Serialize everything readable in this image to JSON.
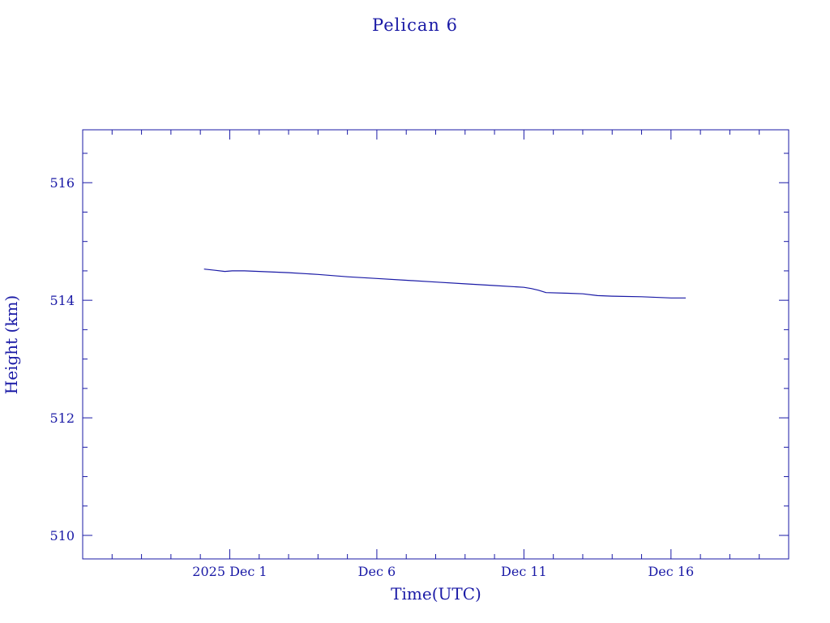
{
  "chart_data": {
    "type": "line",
    "title": "Pelican 6",
    "xlabel": "Time(UTC)",
    "ylabel": "Height (km)",
    "x_unit": "date",
    "xlim": [
      "2025-11-26",
      "2025-12-20"
    ],
    "ylim": [
      509.6,
      516.9
    ],
    "x_ticks": [
      {
        "x": "2025-12-01",
        "label": "2025 Dec  1"
      },
      {
        "x": "2025-12-06",
        "label": "Dec  6"
      },
      {
        "x": "2025-12-11",
        "label": "Dec 11"
      },
      {
        "x": "2025-12-16",
        "label": "Dec 16"
      }
    ],
    "x_minor_ticks": [
      "2025-11-27",
      "2025-11-28",
      "2025-11-29",
      "2025-11-30",
      "2025-12-02",
      "2025-12-03",
      "2025-12-04",
      "2025-12-05",
      "2025-12-07",
      "2025-12-08",
      "2025-12-09",
      "2025-12-10",
      "2025-12-12",
      "2025-12-13",
      "2025-12-14",
      "2025-12-15",
      "2025-12-17",
      "2025-12-18",
      "2025-12-19"
    ],
    "y_ticks": [
      510,
      512,
      514,
      516
    ],
    "y_minor_ticks": [
      510.5,
      511,
      511.5,
      512.5,
      513,
      513.5,
      514.5,
      515,
      515.5,
      516.5
    ],
    "grid": false,
    "series": [
      {
        "points": [
          [
            "2025-11-30 03:00",
            514.53
          ],
          [
            "2025-11-30 12:00",
            514.51
          ],
          [
            "2025-11-30 20:00",
            514.49
          ],
          [
            "2025-12-01 02:00",
            514.5
          ],
          [
            "2025-12-01 12:00",
            514.5
          ],
          [
            "2025-12-02 00:00",
            514.49
          ],
          [
            "2025-12-03 00:00",
            514.47
          ],
          [
            "2025-12-04 00:00",
            514.44
          ],
          [
            "2025-12-05 00:00",
            514.4
          ],
          [
            "2025-12-06 00:00",
            514.37
          ],
          [
            "2025-12-07 00:00",
            514.34
          ],
          [
            "2025-12-08 00:00",
            514.31
          ],
          [
            "2025-12-09 00:00",
            514.28
          ],
          [
            "2025-12-10 00:00",
            514.25
          ],
          [
            "2025-12-11 00:00",
            514.22
          ],
          [
            "2025-12-11 06:00",
            514.2
          ],
          [
            "2025-12-11 12:00",
            514.17
          ],
          [
            "2025-12-11 18:00",
            514.13
          ],
          [
            "2025-12-12 12:00",
            514.12
          ],
          [
            "2025-12-13 00:00",
            514.11
          ],
          [
            "2025-12-13 12:00",
            514.08
          ],
          [
            "2025-12-14 00:00",
            514.07
          ],
          [
            "2025-12-15 00:00",
            514.06
          ],
          [
            "2025-12-16 00:00",
            514.04
          ],
          [
            "2025-12-16 12:00",
            514.04
          ]
        ]
      }
    ],
    "color": "#1a1aa6"
  }
}
